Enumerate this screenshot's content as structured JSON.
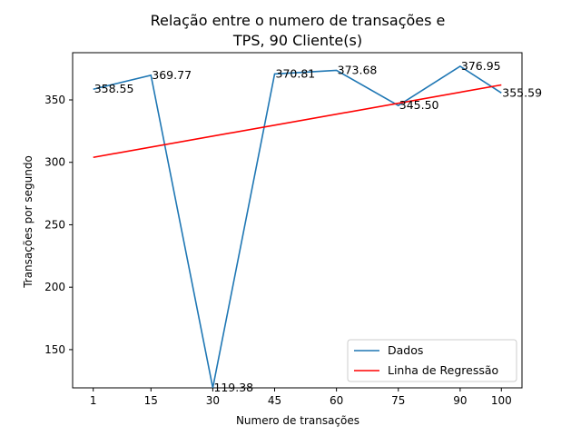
{
  "chart_data": {
    "type": "line",
    "title_line1": "Relação entre o numero de transações e",
    "title_line2": "TPS, 90 Cliente(s)",
    "xlabel": "Numero de transações",
    "ylabel": "Transações por segundo",
    "x": [
      1,
      15,
      30,
      45,
      60,
      75,
      90,
      100
    ],
    "x_ticks": [
      "1",
      "15",
      "30",
      "45",
      "60",
      "75",
      "90",
      "100"
    ],
    "y_ticks": [
      150,
      200,
      250,
      300,
      350
    ],
    "y_tick_labels": [
      "150",
      "200",
      "250",
      "300",
      "350"
    ],
    "xlim": [
      -4.0,
      105.0
    ],
    "ylim": [
      119.38,
      387.83
    ],
    "series": [
      {
        "name": "Dados",
        "color": "#1f77b4",
        "values": [
          358.55,
          369.77,
          119.38,
          370.81,
          373.68,
          345.5,
          376.95,
          355.59
        ],
        "labels": [
          "358.55",
          "369.77",
          "119.38",
          "370.81",
          "373.68",
          "345.50",
          "376.95",
          "355.59"
        ]
      },
      {
        "name": "Linha de Regressão",
        "color": "#ff0000",
        "x": [
          1,
          100
        ],
        "values": [
          304.0,
          362.0
        ]
      }
    ],
    "grid": false,
    "legend_position": "lower-right"
  }
}
